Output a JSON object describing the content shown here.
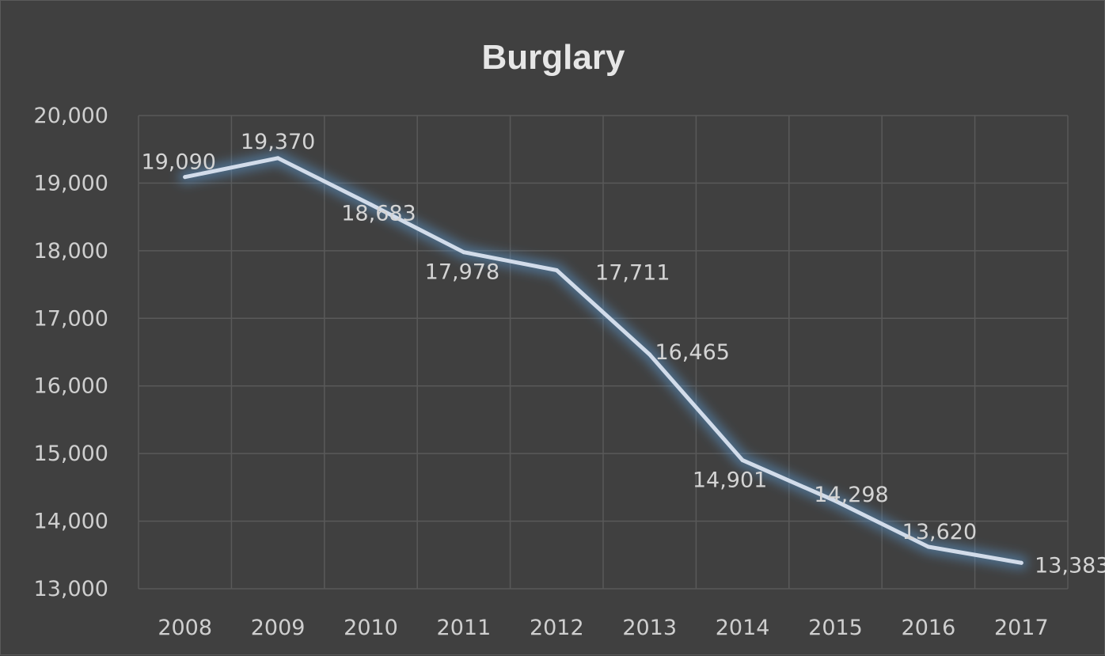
{
  "chart_data": {
    "type": "line",
    "title": "Burglary",
    "xlabel": "",
    "ylabel": "",
    "categories": [
      "2008",
      "2009",
      "2010",
      "2011",
      "2012",
      "2013",
      "2014",
      "2015",
      "2016",
      "2017"
    ],
    "series": [
      {
        "values": [
          19090,
          19370,
          18683,
          17978,
          17711,
          16465,
          14901,
          14298,
          13620,
          13383
        ],
        "data_labels": [
          "19,090",
          "19,370",
          "18,683",
          "17,978",
          "17,711",
          "16,465",
          "14,901",
          "14,298",
          "13,620",
          "13,383"
        ]
      }
    ],
    "yticks": [
      13000,
      14000,
      15000,
      16000,
      17000,
      18000,
      19000,
      20000
    ],
    "ytick_labels": [
      "13,000",
      "14,000",
      "15,000",
      "16,000",
      "17,000",
      "18,000",
      "19,000",
      "20,000"
    ],
    "ylim": [
      13000,
      20000
    ],
    "grid": true,
    "legend": "none",
    "colors": {
      "background": "#404040",
      "line": "#d2dcea",
      "glow": "#5b9bd5",
      "gridline": "#595959",
      "text": "#d0d0d0"
    }
  }
}
